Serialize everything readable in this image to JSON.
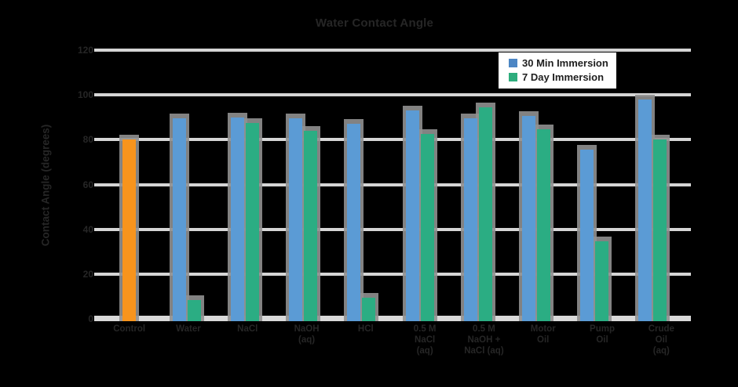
{
  "background_color": "#000000",
  "title": {
    "text": "Water Contact Angle"
  },
  "legend": {
    "position": "top-right",
    "items": [
      {
        "label": "30 Min Immersion",
        "color": "#4C86C4"
      },
      {
        "label": "7 Day Immersion",
        "color": "#2EAD7D"
      }
    ]
  },
  "colors": {
    "gridline": "#D5D5D5",
    "axis_line": "#D9D9D9",
    "bar_shadow": "#909090",
    "dark_text": "#262626",
    "legend_bg": "#FFFFFF"
  },
  "chart_data": {
    "type": "bar",
    "title": "Water Contact Angle",
    "xlabel": "",
    "ylabel": "Contact Angle (degrees)",
    "ylim": [
      0,
      120
    ],
    "yticks": [
      0,
      20,
      40,
      60,
      80,
      100,
      120
    ],
    "grid": true,
    "legend_position": "top-right",
    "categories": [
      "Control",
      "Water",
      "NaCl",
      "NaOH\n(aq)",
      "HCl",
      "0.5 M\nNaCl\n(aq)",
      "0.5 M\nNaOH +\nNaCl (aq)",
      "Motor\nOil",
      "Pump\nOil",
      "Crude\nOil\n(aq)"
    ],
    "series": [
      {
        "name": "Control",
        "color": "#F7941D",
        "values": [
          80,
          null,
          null,
          null,
          null,
          null,
          null,
          null,
          null,
          null
        ]
      },
      {
        "name": "30 Min Immersion",
        "color": "#5B9BD5",
        "values": [
          null,
          89.5,
          90,
          89.5,
          87,
          93,
          89.5,
          90.5,
          75.5,
          98
        ]
      },
      {
        "name": "7 Day Immersion",
        "color": "#2BAD83",
        "values": [
          null,
          8.5,
          87.5,
          84,
          9.5,
          82.5,
          94.5,
          84.5,
          34.5,
          80
        ]
      }
    ]
  }
}
